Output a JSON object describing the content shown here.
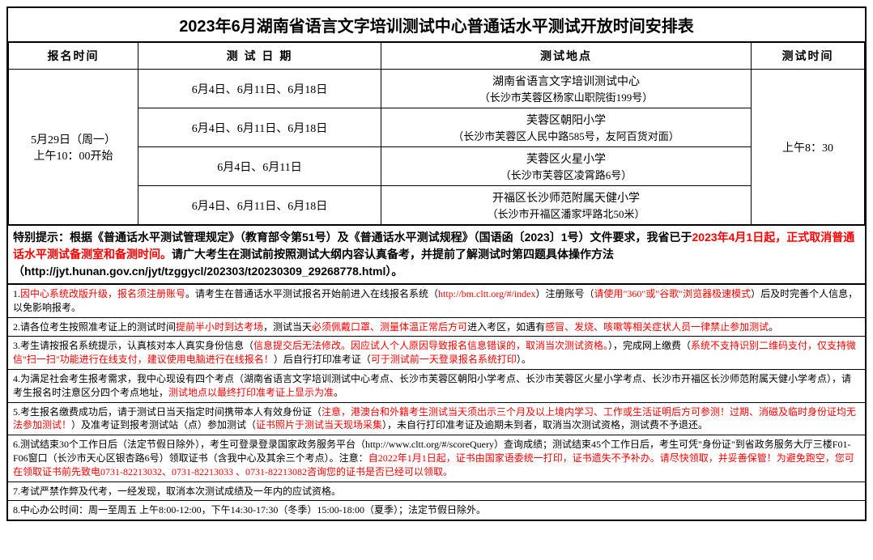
{
  "title": "2023年6月湖南省语言文字培训测试中心普通话水平测试开放时间安排表",
  "headers": {
    "reg_time": "报名时间",
    "test_date": "测 试 日 期",
    "test_location": "测试地点",
    "test_time": "测试时间"
  },
  "reg_time_value_l1": "5月29日（周一）",
  "reg_time_value_l2": "上午10：00开始",
  "test_time_value": "上午8：30",
  "rows": [
    {
      "date": "6月4日、6月11日、6月18日",
      "loc_main": "湖南省语言文字培训测试中心",
      "loc_sub": "（长沙市芙蓉区杨家山职院街199号）"
    },
    {
      "date": "6月4日、6月11日、6月18日",
      "loc_main": "芙蓉区朝阳小学",
      "loc_sub": "（长沙市芙蓉区人民中路585号，友阿百货对面）"
    },
    {
      "date": "6月4日、6月11日",
      "loc_main": "芙蓉区火星小学",
      "loc_sub": "（长沙市芙蓉区凌霄路6号）"
    },
    {
      "date": "6月4日、6月11日、6月18日",
      "loc_main": "开福区长沙师范附属天健小学",
      "loc_sub": "（长沙市开福区潘家坪路北50米）"
    }
  ],
  "special_notice": {
    "p1_black": "特别提示：根据《普通话水平测试管理规定》（教育部令第51号）及《普通话水平测试规程》（国语函〔2023〕1号）文件要求，我省已于",
    "p1_red": "2023年4月1日起，正式取消普通话水平测试备测室和备测时间。",
    "p2_black": "请广大考生在测试前按照测试大纲内容认真备考，并提前了解测试时第四题具体操作方法（http://jyt.hunan.gov.cn/jyt/tzggycl/202303/t20230309_29268778.html）。"
  },
  "notes": [
    {
      "segments": [
        {
          "t": "1.",
          "c": "black"
        },
        {
          "t": "因中心系统改版升级，报名须注册账号",
          "c": "red"
        },
        {
          "t": "。请考生在普通话水平测试报名开始前进入在线报名系统（",
          "c": "black"
        },
        {
          "t": "http://bm.cltt.org/#/index",
          "c": "red"
        },
        {
          "t": "）注册账号（",
          "c": "black"
        },
        {
          "t": "请使用\"360\"或\"谷歌\"浏览器极速模式",
          "c": "red"
        },
        {
          "t": "）后及时完善个人信息，以免影响报考。",
          "c": "black"
        }
      ]
    },
    {
      "segments": [
        {
          "t": "2.请各位考生按照准考证上的测试时间",
          "c": "black"
        },
        {
          "t": "提前半小时到达考场",
          "c": "red"
        },
        {
          "t": "，测试当天",
          "c": "black"
        },
        {
          "t": "必须佩戴口罩、测量体温正常后方可",
          "c": "red"
        },
        {
          "t": "进入考区，如遇有",
          "c": "black"
        },
        {
          "t": "感冒、发烧、咳嗽等相关症状人员一律禁止参加测试",
          "c": "red"
        },
        {
          "t": "。",
          "c": "black"
        }
      ]
    },
    {
      "segments": [
        {
          "t": "3.考生请按报名系统提示，认真核对本人真实身份信息（",
          "c": "black"
        },
        {
          "t": "信息提交后无法修改。因应试人个人原因导致报名信息错误的，取消当次测试资格。",
          "c": "red"
        },
        {
          "t": "），完成网上缴费（",
          "c": "black"
        },
        {
          "t": "系统不支持识别二维码支付，仅支持微信\"扫一扫\"功能进行在线支付，建议使用电脑进行在线报名！",
          "c": "red"
        },
        {
          "t": "）后自行打印准考证（",
          "c": "black"
        },
        {
          "t": "可于测试前一天登录报名系统打印",
          "c": "red"
        },
        {
          "t": "）。",
          "c": "black"
        }
      ]
    },
    {
      "segments": [
        {
          "t": "4.为满足社会考生报考需求，我中心现设有四个考点（湖南省语言文字培训测试中心考点、长沙市芙蓉区朝阳小学考点、长沙市芙蓉区火星小学考点、长沙市开福区长沙师范附属天健小学考点），请考生报名时注意区分四个考点地址，",
          "c": "black"
        },
        {
          "t": "测试地点以最终打印准考证上显示为准",
          "c": "red"
        },
        {
          "t": "。",
          "c": "black"
        }
      ]
    },
    {
      "segments": [
        {
          "t": "5.考生报名缴费成功后，请于测试日当天指定时间携带本人有效身份证（",
          "c": "black"
        },
        {
          "t": "注意，港澳台和外籍考生测试当天须出示三个月及以上境内学习、工作或生活证明后方可参测！过期、消磁及临时身份证均无法参加测试！",
          "c": "red"
        },
        {
          "t": "）及准考证到报考测试站（点）参加测试（",
          "c": "black"
        },
        {
          "t": "证书照片于测试当天现场采集",
          "c": "red"
        },
        {
          "t": "），未自行打印准考证及逾期未到者，取消当次测试资格，测试费不予退还。",
          "c": "black"
        }
      ]
    },
    {
      "segments": [
        {
          "t": "6.测试结束30个工作日后（法定节假日除外），考生可登录登录国家政务服务平台（http://www.cltt.org/#/scoreQuery）查询成绩；测试结束45个工作日后，考生可凭\"身份证\"到省政务服务大厅三楼F01-F06窗口（长沙市天心区银杏路6号）领取证书（含我中心及其余三个考点）。注意：",
          "c": "black"
        },
        {
          "t": "自2022年1月1日起，证书由国家语委统一打印，证书遗失不予补办。请尽快领取，并妥善保管！为避免跑空，您可在领取证书前先致电0731-82213032、0731-82213033 、0731-82213082咨询您的证书是否已经可以领取。",
          "c": "red"
        }
      ]
    },
    {
      "segments": [
        {
          "t": "7.考试严禁作弊及代考，一经发现，取消本次测试成绩及一年内的应试资格。",
          "c": "black"
        }
      ]
    },
    {
      "segments": [
        {
          "t": "8.中心办公时间：周一至周五 上午8:00-12:00，下午14:30-17:30（冬季）15:00-18:00（夏季）；法定节假日除外。",
          "c": "black"
        }
      ]
    }
  ]
}
